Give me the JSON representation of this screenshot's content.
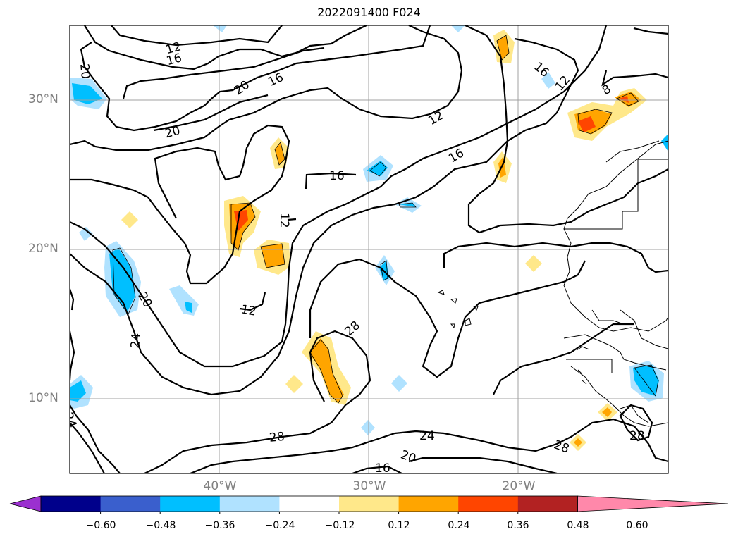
{
  "map": {
    "title": "2022091400 F024",
    "lat_labels": [
      "30°N",
      "20°N",
      "10°N"
    ],
    "lon_labels": [
      "40°W",
      "30°W",
      "20°W"
    ],
    "contour_labels": [
      "12",
      "16",
      "20",
      "16",
      "20",
      "16",
      "12",
      "16",
      "16",
      "12",
      "8",
      "20",
      "20",
      "12",
      "12",
      "20",
      "24",
      "28",
      "28",
      "24",
      "20",
      "16",
      "28",
      "28",
      "24"
    ]
  },
  "colorbar": {
    "ticks": [
      "−0.60",
      "−0.48",
      "−0.36",
      "−0.24",
      "−0.12",
      "0.12",
      "0.24",
      "0.36",
      "0.48",
      "0.60"
    ],
    "colors": [
      "#9b30d0",
      "#00008b",
      "#3a5fcd",
      "#00bfff",
      "#b0e2ff",
      "#ffffff",
      "#ffe88a",
      "#ffa500",
      "#ff4500",
      "#b22222",
      "#ff88aa"
    ]
  }
}
